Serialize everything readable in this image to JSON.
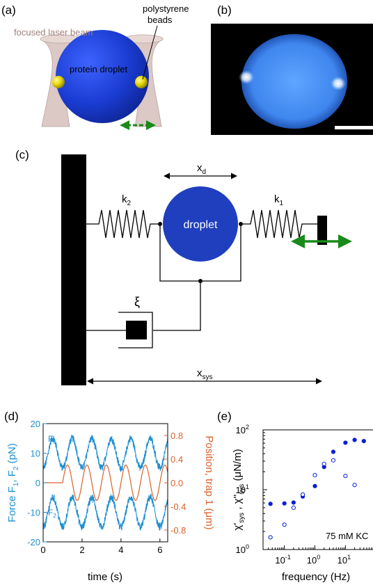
{
  "panels": {
    "a": {
      "label": "(a)",
      "laser_label": "focused laser beam",
      "beads_label_1": "polystyrene",
      "beads_label_2": "beads",
      "droplet_label": "protein droplet"
    },
    "b": {
      "label": "(b)"
    },
    "c": {
      "label": "(c)",
      "xd": "x",
      "xd_sub": "d",
      "k2": "k",
      "k2_sub": "2",
      "k1": "k",
      "k1_sub": "1",
      "droplet": "droplet",
      "xi": "ξ",
      "xsys": "x",
      "xsys_sub": "sys"
    },
    "d": {
      "label": "(d)",
      "ylabel_left": "Force F",
      "ylabel_left_sub1": "1",
      "ylabel_left_mid": ", F",
      "ylabel_left_sub2": "2",
      "ylabel_left_unit": " (pN)",
      "ylabel_right": "Position, trap 1 (μm)",
      "xlabel": "time (s)",
      "f1": "F",
      "f1_sub": "1",
      "f2": "F",
      "f2_sub": "2"
    },
    "e": {
      "label": "(e)",
      "xlabel": "frequency (Hz)",
      "annotation": "75 mM KC"
    }
  },
  "colors": {
    "droplet_blue": "#1f3fbf",
    "bead_yellow": "#e0d000",
    "laser_pink": "#dcc8c4",
    "arrow_green": "#1a8a1a",
    "force_blue": "#1f8fd0",
    "position_orange": "#d9622b",
    "data_blue": "#0a1fd6"
  },
  "chart_data": [
    {
      "type": "line",
      "panel": "d",
      "x_range": [
        0,
        6.4
      ],
      "xticks": [
        "0",
        "2",
        "4",
        "6"
      ],
      "ylim_left": [
        -20,
        20
      ],
      "yticks_left": [
        "20",
        "10",
        "0",
        "-10",
        "-20"
      ],
      "ylim_right": [
        -1.0,
        1.0
      ],
      "yticks_right": [
        "0.8",
        "0.4",
        "0.0",
        "-0.4",
        "-0.8"
      ],
      "series": [
        {
          "name": "F1",
          "axis": "left",
          "offset": 10,
          "amplitude": 5,
          "noise": 1.2,
          "frequency_hz": 1
        },
        {
          "name": "F2",
          "axis": "left",
          "offset": -10,
          "amplitude": 5,
          "noise": 1.2,
          "frequency_hz": 1
        },
        {
          "name": "trap 1",
          "axis": "right",
          "offset": 0.0,
          "amplitude": 0.3,
          "start_s": 1.0,
          "frequency_hz": 1
        }
      ]
    },
    {
      "type": "scatter",
      "panel": "e",
      "xscale": "log",
      "yscale": "log",
      "xlim": [
        0.02,
        80
      ],
      "ylim": [
        1,
        100
      ],
      "xticks": [
        "10",
        "10",
        "10"
      ],
      "xtick_exps": [
        "-1",
        "0",
        "1"
      ],
      "yticks": [
        "10",
        "10",
        "10"
      ],
      "ytick_exps": [
        "2",
        "1",
        "0"
      ],
      "series": [
        {
          "name": "χ'",
          "filled": true,
          "x": [
            0.035,
            0.1,
            0.2,
            0.4,
            1.0,
            2.0,
            4.0,
            10.0,
            20.0,
            40.0
          ],
          "y": [
            5.8,
            5.9,
            6.1,
            7.7,
            11.5,
            24,
            43,
            61,
            68,
            65
          ]
        },
        {
          "name": "χ''",
          "filled": false,
          "x": [
            0.035,
            0.1,
            0.2,
            0.4,
            1.0,
            2.0,
            4.0,
            10.0,
            20.0
          ],
          "y": [
            1.6,
            2.6,
            5.0,
            8.3,
            17.5,
            27,
            31,
            17,
            12
          ]
        }
      ]
    }
  ]
}
